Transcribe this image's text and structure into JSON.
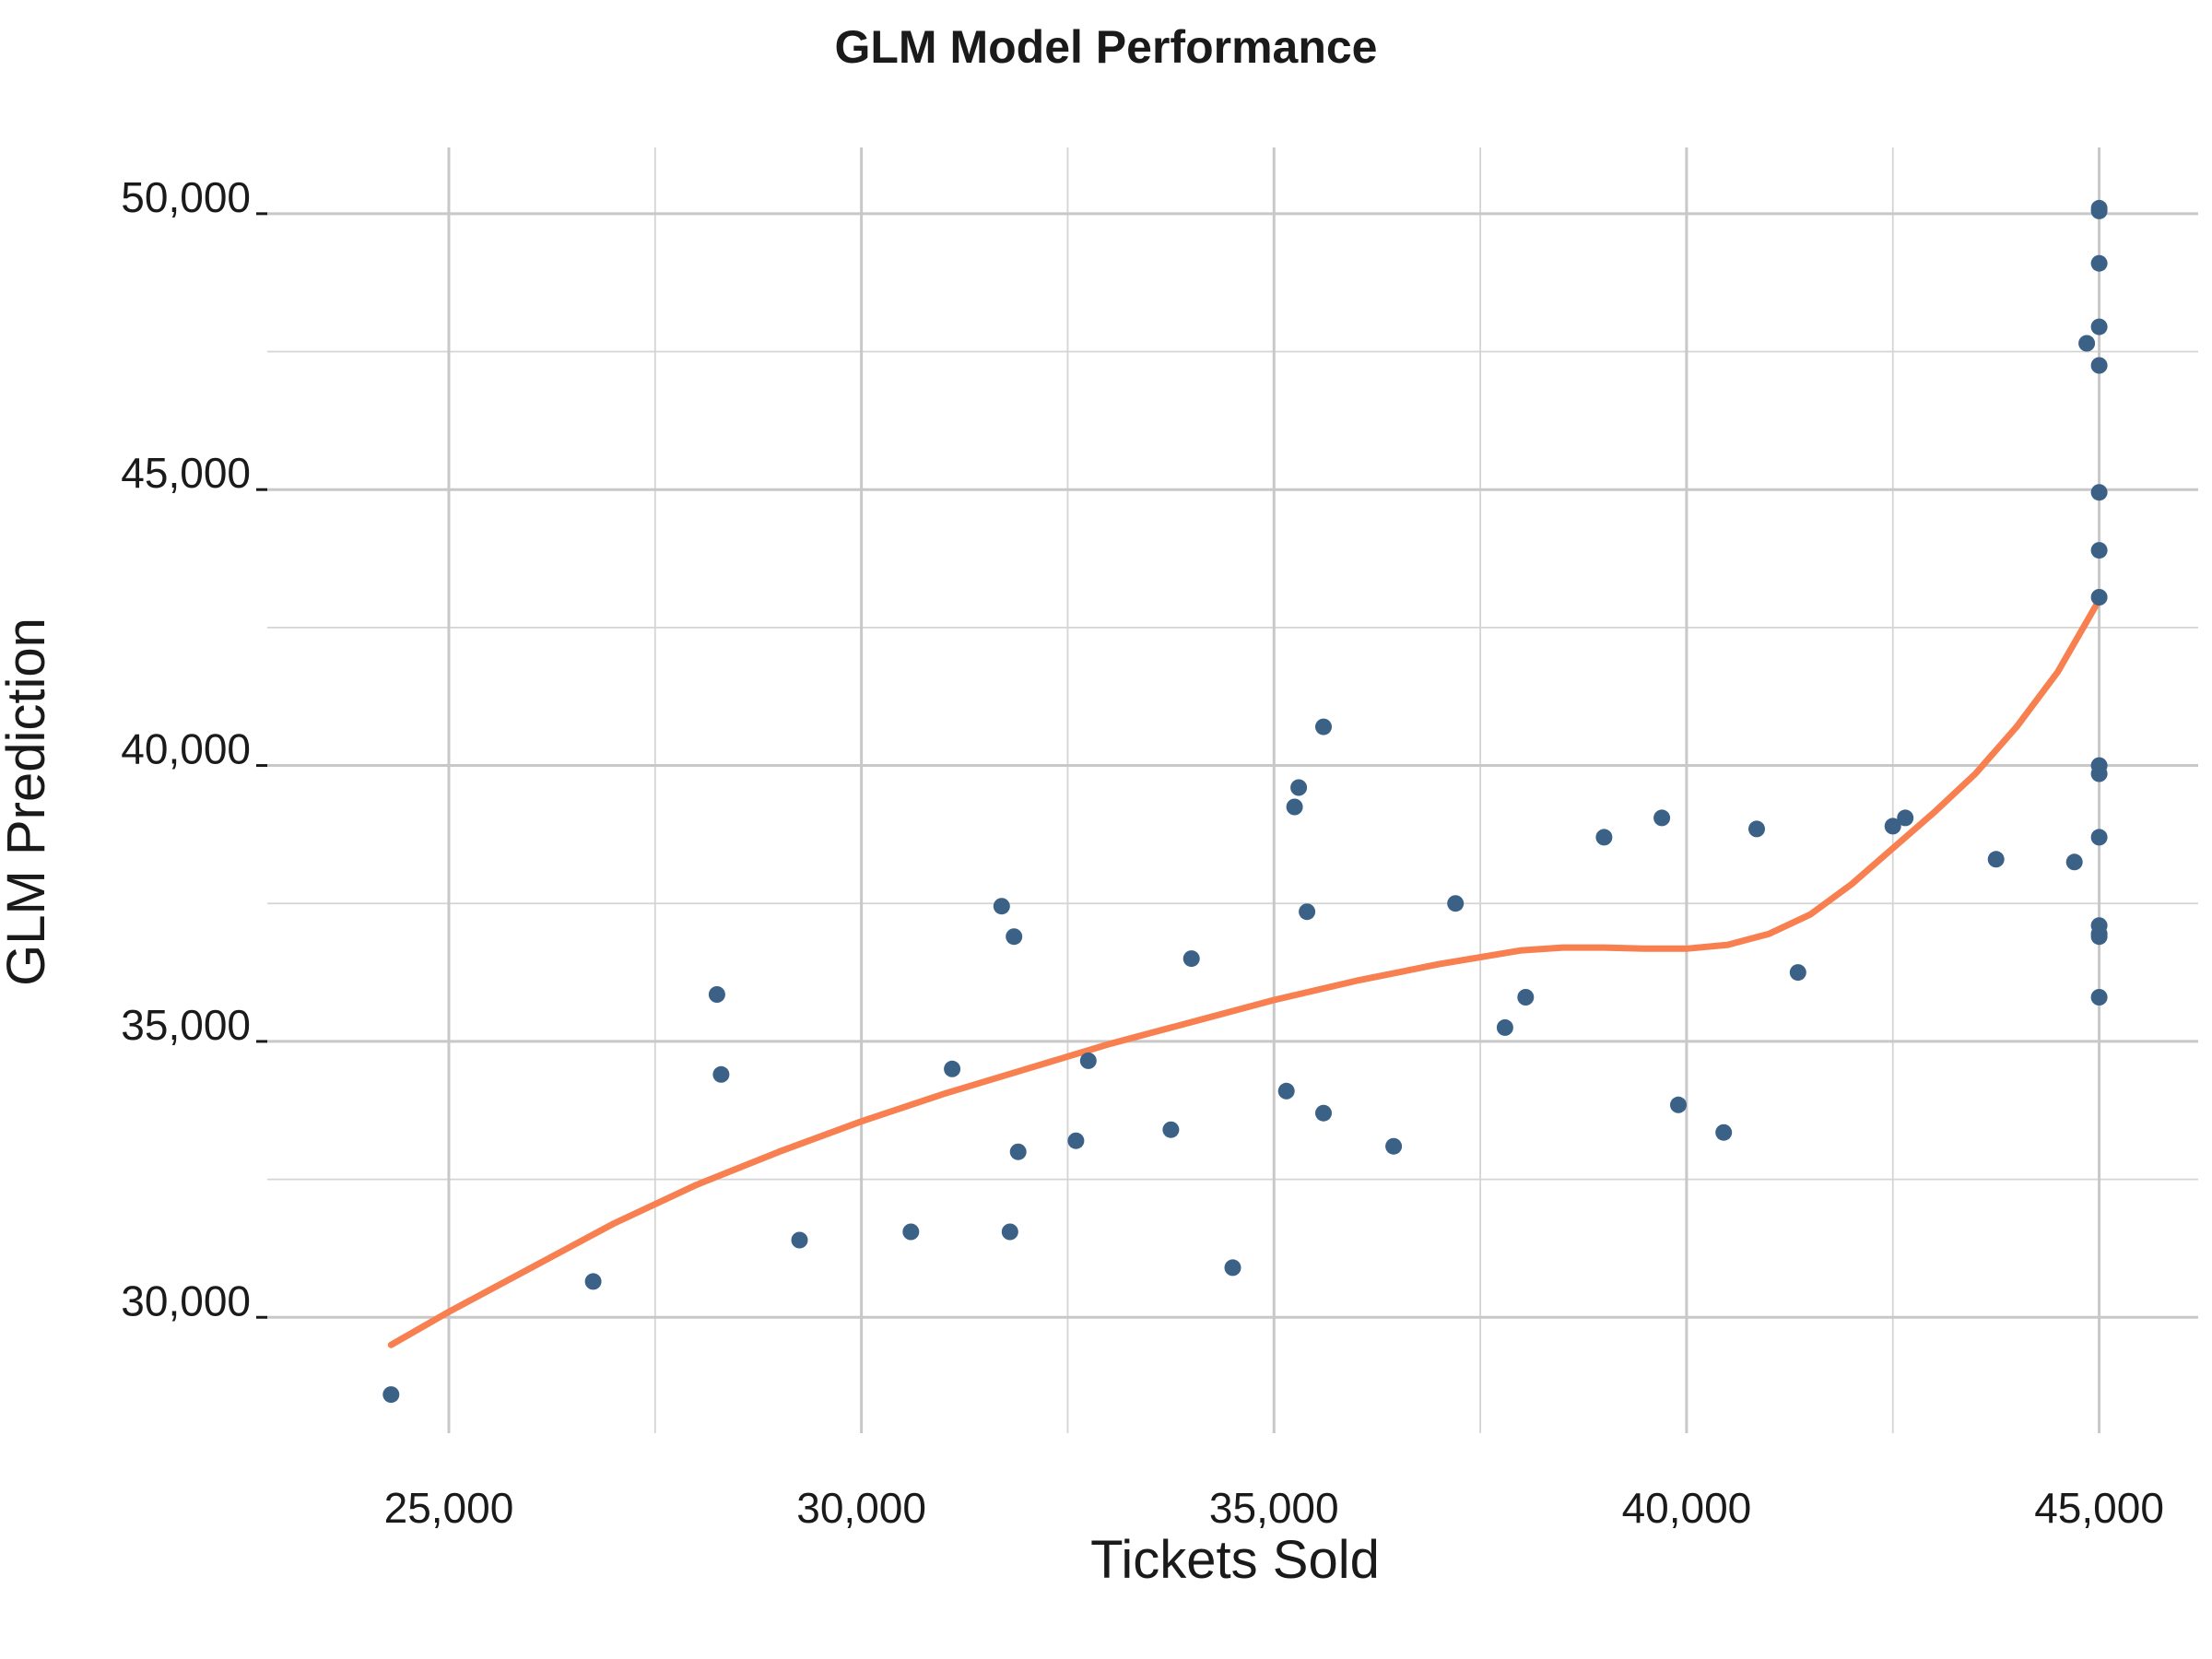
{
  "chart_data": {
    "type": "scatter",
    "title": "GLM Model Performance",
    "xlabel": "Tickets Sold",
    "ylabel": "GLM Prediction",
    "xlim": [
      22800,
      46200
    ],
    "ylim": [
      27900,
      51200
    ],
    "x_ticks": [
      25000,
      30000,
      35000,
      40000,
      45000
    ],
    "x_tick_labels": [
      "25,000",
      "30,000",
      "35,000",
      "40,000",
      "45,000"
    ],
    "x_minor_ticks": [
      27500,
      32500,
      37500,
      42500
    ],
    "y_ticks": [
      30000,
      35000,
      40000,
      45000,
      50000
    ],
    "y_tick_labels": [
      "30,000",
      "35,000",
      "40,000",
      "45,000",
      "50,000"
    ],
    "y_minor_ticks": [
      32500,
      37500,
      42500,
      47500
    ],
    "grid": true,
    "colors": {
      "points": "#3b6186",
      "trend": "#f77f50",
      "grid": "#c8c8c8"
    },
    "series": [
      {
        "type": "scatter",
        "x": [
          24300,
          26750,
          28250,
          28300,
          29250,
          30600,
          31100,
          31700,
          31800,
          31850,
          31900,
          32600,
          32750,
          33750,
          34000,
          34500,
          35150,
          35250,
          35300,
          35400,
          35600,
          35600,
          36450,
          37200,
          37800,
          38050,
          39000,
          39700,
          39900,
          40450,
          40850,
          41350,
          42500,
          42650,
          43750,
          44700,
          44850,
          45000,
          45000,
          45000,
          45000,
          45000,
          45000,
          45000,
          45000,
          45000,
          45000,
          45000,
          45000,
          45000,
          45000,
          45000
        ],
        "y": [
          28600,
          30650,
          35850,
          34400,
          31400,
          31550,
          34500,
          37450,
          31550,
          36900,
          33000,
          33200,
          34650,
          33400,
          36500,
          30900,
          34100,
          39250,
          39600,
          37350,
          33700,
          40700,
          33100,
          37500,
          35250,
          35800,
          38700,
          39050,
          33850,
          33350,
          38850,
          36250,
          38900,
          39050,
          38300,
          38250,
          47650,
          50050,
          50100,
          49100,
          47950,
          47250,
          44950,
          43900,
          43050,
          40000,
          39850,
          38700,
          37100,
          36900,
          35800,
          36950
        ]
      },
      {
        "type": "line",
        "x": [
          24300,
          25000,
          26000,
          27000,
          28000,
          29000,
          30000,
          31000,
          32000,
          33000,
          34000,
          35000,
          36000,
          37000,
          38000,
          38500,
          39000,
          39500,
          40000,
          40500,
          41000,
          41500,
          42000,
          42500,
          43000,
          43500,
          44000,
          44500,
          45000
        ],
        "y": [
          29500,
          30100,
          30900,
          31700,
          32400,
          33000,
          33550,
          34050,
          34500,
          34950,
          35350,
          35750,
          36100,
          36400,
          36650,
          36700,
          36700,
          36680,
          36680,
          36750,
          36950,
          37300,
          37850,
          38500,
          39150,
          39850,
          40700,
          41700,
          43000
        ]
      }
    ]
  }
}
